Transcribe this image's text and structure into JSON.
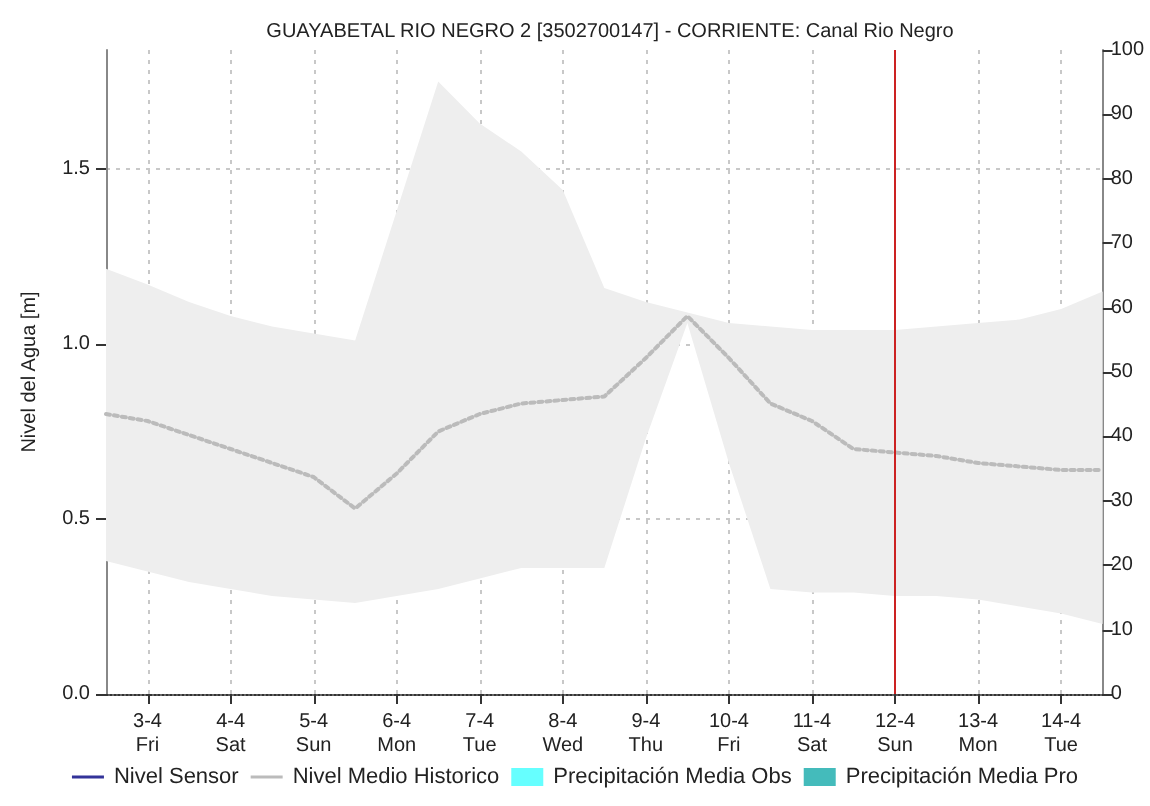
{
  "chart_data": {
    "type": "line",
    "title": "GUAYABETAL RIO NEGRO 2 [3502700147] - CORRIENTE: Canal Rio Negro",
    "ylabel": "Nivel del Agua [m]",
    "categories": [
      null,
      "3-4\nFri",
      null,
      "4-4\nSat",
      null,
      "5-4\nSun",
      null,
      "6-4\nMon",
      null,
      "7-4\nTue",
      null,
      "8-4\nWed",
      null,
      "9-4\nThu",
      null,
      "10-4\nFri",
      null,
      "11-4\nSat",
      null,
      "12-4\nSun",
      null,
      "13-4\nMon",
      null,
      "14-4\nTue",
      null
    ],
    "series": [
      {
        "name": "Nivel Sensor",
        "color": "#333399",
        "line_style": "solid",
        "values": [
          null,
          null,
          null,
          null,
          null,
          null,
          null,
          null,
          null,
          null,
          null,
          null,
          null,
          null,
          null,
          null,
          null,
          null,
          null,
          null,
          null,
          null,
          null,
          null,
          null
        ]
      },
      {
        "name": "Nivel Medio Historico",
        "color": "#bbbbbb",
        "line_style": "dotted",
        "values": [
          0.8,
          0.78,
          0.74,
          0.7,
          0.66,
          0.62,
          0.53,
          0.63,
          0.75,
          0.8,
          0.83,
          0.84,
          0.85,
          0.96,
          1.08,
          0.96,
          0.83,
          0.78,
          0.7,
          0.69,
          0.68,
          0.66,
          0.65,
          0.64,
          0.64
        ],
        "lower": [
          0.38,
          0.35,
          0.32,
          0.3,
          0.28,
          0.27,
          0.26,
          0.28,
          0.3,
          0.33,
          0.36,
          0.36,
          0.36,
          0.73,
          1.06,
          0.66,
          0.3,
          0.29,
          0.29,
          0.28,
          0.28,
          0.27,
          0.25,
          0.23,
          0.2
        ],
        "upper": [
          1.215,
          1.17,
          1.12,
          1.08,
          1.05,
          1.03,
          1.01,
          1.38,
          1.75,
          1.63,
          1.55,
          1.44,
          1.16,
          1.12,
          1.09,
          1.06,
          1.05,
          1.04,
          1.04,
          1.04,
          1.05,
          1.06,
          1.07,
          1.1,
          1.15
        ]
      },
      {
        "name": "Precipitación Media Obs",
        "type": "bar",
        "axis": "y2",
        "color": "#66ffff",
        "values": [
          null,
          null,
          null,
          null,
          null,
          null,
          null,
          null,
          null,
          null,
          null,
          null,
          null,
          null,
          null,
          null,
          null,
          null,
          null,
          null,
          null,
          null,
          null,
          null,
          null
        ]
      },
      {
        "name": "Precipitación Media Pro",
        "type": "bar",
        "axis": "y2",
        "color": "#44bbbb",
        "values": [
          null,
          null,
          null,
          null,
          null,
          null,
          null,
          null,
          null,
          null,
          null,
          null,
          null,
          null,
          null,
          null,
          null,
          null,
          null,
          null,
          null,
          null,
          null,
          null,
          null
        ]
      }
    ],
    "ylim": [
      0,
      1.84
    ],
    "yticks": [
      {
        "value": 0,
        "label": "0.0"
      },
      0.5,
      {
        "value": 1,
        "label": "1.0"
      },
      1.5
    ],
    "y2lim": [
      0,
      100
    ],
    "y2ticks": [
      0,
      10,
      20,
      30,
      40,
      50,
      60,
      70,
      80,
      90,
      100
    ],
    "ref_lines": [
      {
        "axis": "x",
        "value": "12-4\nSun",
        "color": "#cc2222"
      }
    ],
    "grid": true,
    "legend": "bottom",
    "marker": "none"
  }
}
